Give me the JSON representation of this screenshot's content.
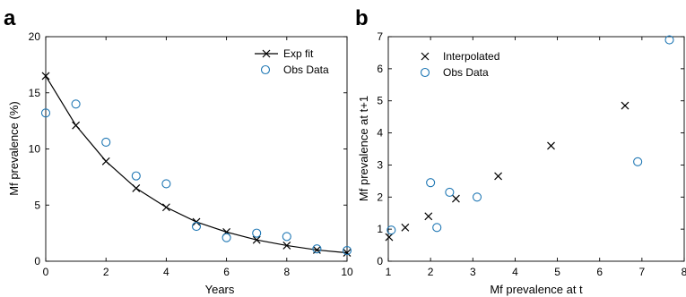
{
  "chart_data": [
    {
      "panel_label": "a",
      "type": "line",
      "xlabel": "Years",
      "ylabel": "Mf prevalence (%)",
      "xlim": [
        0,
        10
      ],
      "ylim": [
        0,
        20
      ],
      "xticks": [
        0,
        2,
        4,
        6,
        8,
        10
      ],
      "yticks": [
        0,
        5,
        10,
        15,
        20
      ],
      "legend_position": "top-right",
      "series": [
        {
          "name": "Exp fit",
          "style": "line-x-marker",
          "color": "#000000",
          "x": [
            0,
            1,
            2,
            3,
            4,
            5,
            6,
            7,
            8,
            9,
            10
          ],
          "y": [
            16.5,
            12.1,
            8.9,
            6.5,
            4.8,
            3.5,
            2.6,
            1.9,
            1.4,
            1.0,
            0.75
          ]
        },
        {
          "name": "Obs Data",
          "style": "circle-marker",
          "color": "#1f77b4",
          "x": [
            0,
            1,
            2,
            3,
            4,
            5,
            6,
            7,
            8,
            9,
            10
          ],
          "y": [
            13.2,
            14.0,
            10.6,
            7.6,
            6.9,
            3.1,
            2.1,
            2.5,
            2.2,
            1.1,
            0.95
          ]
        }
      ]
    },
    {
      "panel_label": "b",
      "type": "scatter",
      "xlabel": "Mf prevalence at  t",
      "ylabel": "Mf prevalence at  t+1",
      "xlim": [
        1,
        8
      ],
      "ylim": [
        0,
        7
      ],
      "xticks": [
        1,
        2,
        3,
        4,
        5,
        6,
        7,
        8
      ],
      "yticks": [
        0,
        1,
        2,
        3,
        4,
        5,
        6,
        7
      ],
      "legend_position": "top-left",
      "series": [
        {
          "name": "Interpolated",
          "style": "x-marker",
          "color": "#000000",
          "x": [
            1.02,
            1.4,
            1.95,
            2.6,
            3.6,
            4.85,
            6.6
          ],
          "y": [
            0.75,
            1.05,
            1.4,
            1.95,
            2.65,
            3.6,
            4.85
          ]
        },
        {
          "name": "Obs Data",
          "style": "circle-marker",
          "color": "#1f77b4",
          "x": [
            1.07,
            2.0,
            2.15,
            2.45,
            3.1,
            6.9,
            7.65
          ],
          "y": [
            0.97,
            2.45,
            1.05,
            2.15,
            2.0,
            3.1,
            6.9
          ]
        }
      ]
    }
  ]
}
